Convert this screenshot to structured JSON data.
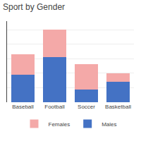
{
  "chart_data": {
    "type": "bar",
    "title": "Sport by Gender",
    "categories": [
      "Baseball",
      "Football",
      "Soccer",
      "Basketball"
    ],
    "series": [
      {
        "name": "Females",
        "color": "#f4a9a8",
        "values": [
          28,
          38,
          35,
          12
        ]
      },
      {
        "name": "Males",
        "color": "#4472c4",
        "values": [
          38,
          62,
          18,
          28
        ]
      }
    ],
    "stacked": true,
    "ylim": [
      0,
      112
    ],
    "yticks": [
      0,
      20,
      40,
      60,
      80,
      100
    ],
    "grid": true,
    "legend": "bottom",
    "tick_labels": "x"
  }
}
